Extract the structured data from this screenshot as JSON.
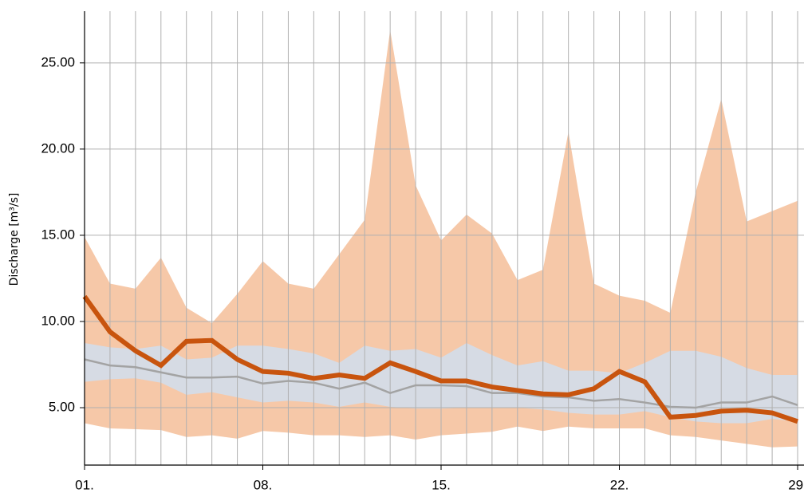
{
  "chart_data": {
    "type": "band-line",
    "y_label": "Discharge [m³/s]",
    "x": [
      1,
      2,
      3,
      4,
      5,
      6,
      7,
      8,
      9,
      10,
      11,
      12,
      13,
      14,
      15,
      16,
      17,
      18,
      19,
      20,
      21,
      22,
      23,
      24,
      25,
      26,
      27,
      28,
      29
    ],
    "xlim": [
      1,
      29.25
    ],
    "xticks": [
      {
        "value": 1,
        "label": "01."
      },
      {
        "value": 8,
        "label": "08."
      },
      {
        "value": 15,
        "label": "15."
      },
      {
        "value": 22,
        "label": "22."
      },
      {
        "value": 29,
        "label": "29."
      }
    ],
    "xminorticks": [
      1,
      2,
      3,
      4,
      5,
      6,
      7,
      8,
      9,
      10,
      11,
      12,
      13,
      14,
      15,
      16,
      17,
      18,
      19,
      20,
      21,
      22,
      23,
      24,
      25,
      26,
      27,
      28,
      29
    ],
    "ylim": [
      1.67,
      28.0
    ],
    "yticks": [
      {
        "value": 5,
        "label": "5.00"
      },
      {
        "value": 10,
        "label": "10.00"
      },
      {
        "value": 15,
        "label": "15.00"
      },
      {
        "value": 20,
        "label": "20.00"
      },
      {
        "value": 25,
        "label": "25.00"
      }
    ],
    "grid": true,
    "bands": [
      {
        "color": "#f6c8a8",
        "upper": [
          14.9,
          12.2,
          11.9,
          13.7,
          10.8,
          9.9,
          11.6,
          13.5,
          12.2,
          11.9,
          13.9,
          15.9,
          26.9,
          17.9,
          14.7,
          16.2,
          15.1,
          12.4,
          13.0,
          21.0,
          12.2,
          11.5,
          11.2,
          10.5,
          17.5,
          22.9,
          15.8,
          16.4,
          17.0
        ],
        "lower": [
          4.1,
          3.8,
          3.75,
          3.7,
          3.3,
          3.4,
          3.2,
          3.65,
          3.55,
          3.4,
          3.4,
          3.3,
          3.4,
          3.15,
          3.4,
          3.5,
          3.6,
          3.9,
          3.65,
          3.9,
          3.8,
          3.8,
          3.8,
          3.4,
          3.3,
          3.1,
          2.9,
          2.7,
          2.75
        ]
      },
      {
        "color": "#d6dbe4",
        "upper": [
          8.75,
          8.5,
          8.4,
          8.6,
          7.8,
          7.9,
          8.6,
          8.6,
          8.4,
          8.15,
          7.6,
          8.6,
          8.3,
          8.4,
          7.9,
          8.75,
          8.05,
          7.45,
          7.7,
          7.15,
          7.15,
          7.0,
          7.6,
          8.3,
          8.3,
          7.95,
          7.3,
          6.9,
          6.9
        ],
        "lower": [
          6.5,
          6.65,
          6.7,
          6.45,
          5.75,
          5.9,
          5.6,
          5.3,
          5.4,
          5.3,
          5.05,
          5.3,
          5.05,
          4.95,
          4.95,
          5.0,
          5.0,
          5.0,
          4.9,
          4.7,
          4.6,
          4.6,
          4.8,
          4.45,
          4.2,
          4.1,
          4.1,
          4.35,
          4.2
        ]
      }
    ],
    "lines": [
      {
        "color": "#a3a3a3",
        "linewidth": 2.5,
        "values": [
          7.8,
          7.45,
          7.35,
          7.05,
          6.75,
          6.75,
          6.8,
          6.4,
          6.55,
          6.45,
          6.1,
          6.45,
          5.85,
          6.3,
          6.3,
          6.25,
          5.85,
          5.85,
          5.65,
          5.6,
          5.4,
          5.5,
          5.3,
          5.05,
          5.0,
          5.3,
          5.3,
          5.65,
          5.15
        ]
      },
      {
        "color": "#c8540e",
        "linewidth": 6,
        "values": [
          11.45,
          9.4,
          8.3,
          7.45,
          8.85,
          8.9,
          7.8,
          7.1,
          7.0,
          6.7,
          6.9,
          6.7,
          7.6,
          7.1,
          6.55,
          6.55,
          6.2,
          6.0,
          5.8,
          5.75,
          6.1,
          7.1,
          6.5,
          4.45,
          4.55,
          4.8,
          4.85,
          4.7,
          4.2
        ]
      }
    ]
  }
}
